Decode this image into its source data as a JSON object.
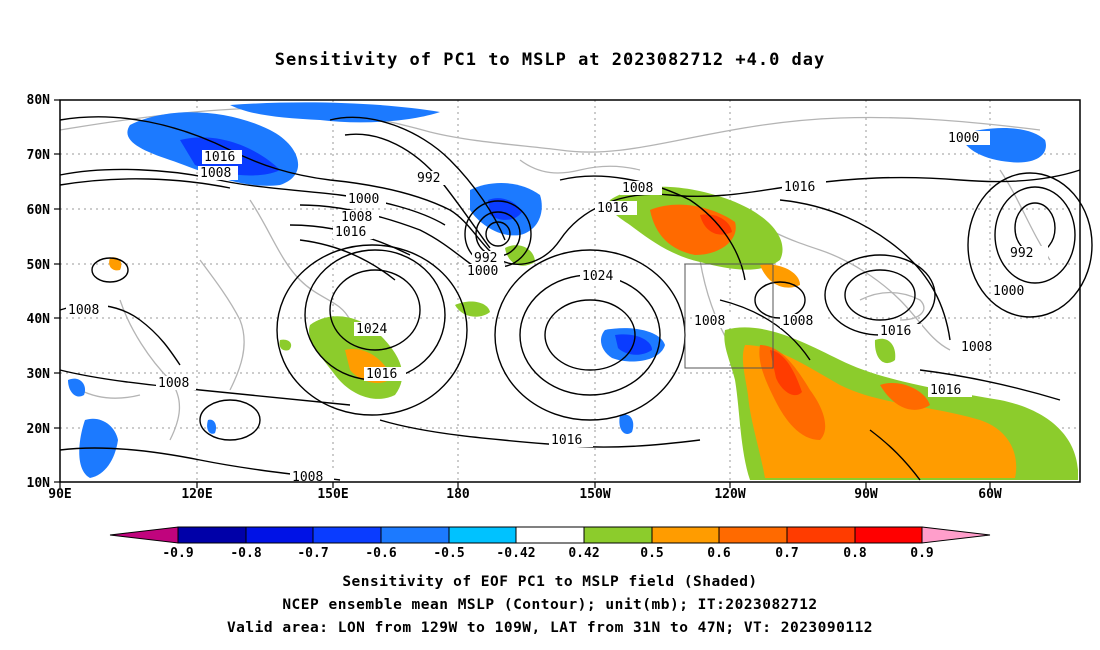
{
  "title": "Sensitivity of PC1 to MSLP at 2023082712 +4.0 day",
  "axes": {
    "y_ticks": [
      "80N",
      "70N",
      "60N",
      "50N",
      "40N",
      "30N",
      "20N",
      "10N"
    ],
    "x_ticks": [
      "90E",
      "120E",
      "150E",
      "180",
      "150W",
      "120W",
      "90W",
      "60W"
    ]
  },
  "contour_labels": [
    "1016",
    "1008",
    "992",
    "1000",
    "1008",
    "1016",
    "992",
    "1000",
    "1024",
    "1008",
    "1024",
    "1016",
    "1008",
    "1016",
    "1008",
    "1008",
    "1016",
    "1008",
    "1016",
    "1016",
    "1000",
    "992",
    "1000",
    "1008",
    "1016",
    "1008"
  ],
  "colorbar": {
    "colors": [
      "#c0047d",
      "#0000a8",
      "#0012e6",
      "#0a3cff",
      "#1c7aff",
      "#00c2ff",
      "#ffffff",
      "#8ccc2c",
      "#ff9c00",
      "#ff6a00",
      "#ff3c00",
      "#ff0000",
      "#ff9ecb"
    ],
    "labels": [
      "-0.9",
      "-0.8",
      "-0.7",
      "-0.6",
      "-0.5",
      "-0.42",
      "0.42",
      "0.5",
      "0.6",
      "0.7",
      "0.8",
      "0.9"
    ]
  },
  "captions": {
    "line1": "Sensitivity of EOF PC1 to MSLP field (Shaded)",
    "line2": "NCEP ensemble mean MSLP (Contour); unit(mb); IT:2023082712",
    "line3": "Valid area: LON from 129W to 109W, LAT from 31N to 47N; VT: 2023090112"
  }
}
